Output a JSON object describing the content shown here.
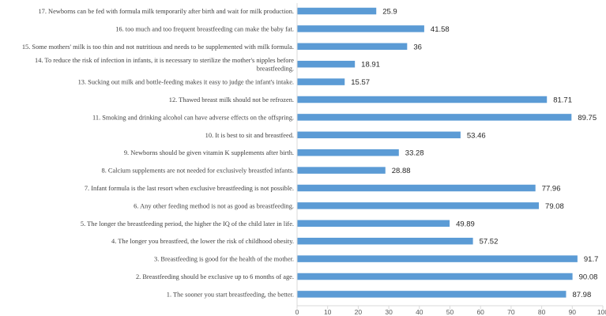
{
  "chart_data": {
    "type": "bar",
    "orientation": "horizontal",
    "categories": [
      "17. Newborns can be fed with formula milk temporarily after birth and wait for milk production.",
      "16. too much and too frequent breastfeeding can make the baby fat.",
      "15. Some mothers' milk is too thin and not nutritious and needs to be supplemented with milk formula.",
      [
        "14. To reduce the risk of infection in infants, it is necessary to sterilize the mother's nipples before",
        "breastfeeding."
      ],
      "13. Sucking out milk and bottle-feeding makes it easy to judge the infant's intake.",
      "12. Thawed breast milk should not be refrozen.",
      "11. Smoking and drinking alcohol can have adverse effects on the offspring.",
      "10. It is best to sit and breastfeed.",
      "9. Newborns should be given vitamin K supplements after birth.",
      "8. Calcium supplements are not needed for exclusively breastfed infants.",
      "7. Infant formula is the last resort when exclusive breastfeeding is not possible.",
      "6. Any other feeding method is not as good as breastfeeding.",
      "5. The longer the breastfeeding period, the higher the IQ of the child later in life.",
      "4. The longer you breastfeed, the lower the risk of childhood obesity.",
      "3. Breastfeeding is good for the health of the mother.",
      "2. Breastfeeding should be exclusive up to 6 months of age.",
      "1. The sooner you start breastfeeding, the better."
    ],
    "values": [
      25.9,
      41.58,
      36,
      18.91,
      15.57,
      81.71,
      89.75,
      53.46,
      33.28,
      28.88,
      77.96,
      79.08,
      49.89,
      57.52,
      91.7,
      90.08,
      87.98
    ],
    "value_labels": [
      "25.9",
      "41.58",
      "36",
      "18.91",
      "15.57",
      "81.71",
      "89.75",
      "53.46",
      "33.28",
      "28.88",
      "77.96",
      "79.08",
      "49.89",
      "57.52",
      "91.7",
      "90.08",
      "87.98"
    ],
    "xlim": [
      0,
      100
    ],
    "xticks": [
      0,
      10,
      20,
      30,
      40,
      50,
      60,
      70,
      80,
      90,
      100
    ],
    "title": "",
    "xlabel": "",
    "ylabel": "",
    "grid": false,
    "legend": "none",
    "colors": {
      "bar": "#5b9bd5",
      "axis": "#d9d9d9"
    }
  }
}
